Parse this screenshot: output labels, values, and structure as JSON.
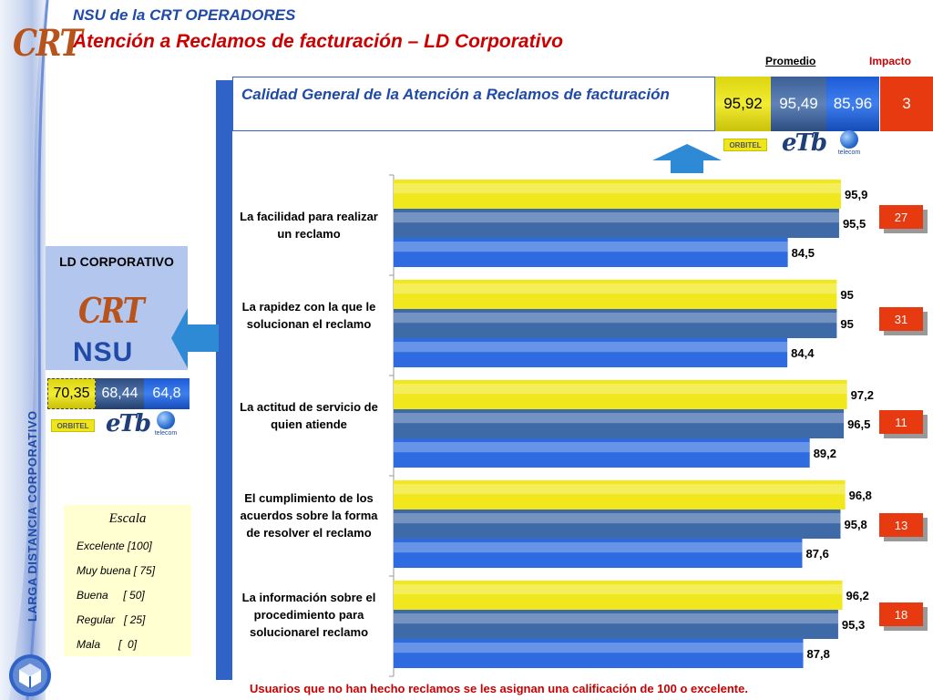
{
  "header": {
    "logo": "CRT",
    "line1": "NSU de la CRT  OPERADORES",
    "line2": "Atención a Reclamos de facturación – LD Corporativo"
  },
  "side_label": "LARGA DISTANCIA CORPORATIVO",
  "columns": {
    "promedio": "Promedio",
    "impacto": "Impacto"
  },
  "summary": {
    "title": "Calidad General de la Atención a Reclamos de facturación",
    "orbitel": "95,92",
    "etb": "95,49",
    "telecom": "85,96",
    "impact": "3"
  },
  "brands": {
    "orbitel": "ORBITEL",
    "etb": "eTb",
    "telecom": "telecom"
  },
  "ld_panel": {
    "title": "LD CORPORATIVO",
    "crt": "CRT",
    "nsu": "NSU",
    "orbitel": "70,35",
    "etb": "68,44",
    "telecom": "64,8"
  },
  "scale": {
    "title": "Escala",
    "items": [
      "Excelente [100]",
      "Muy buena [ 75]",
      "Buena     [ 50]",
      "Regular   [ 25]",
      "Mala      [  0]"
    ]
  },
  "footnote": "Usuarios que no han hecho reclamos se les asignan una calificación de 100 o excelente.",
  "colors": {
    "orbitel": "#f0e81c",
    "etb": "#3f6aa8",
    "telecom": "#2f6be0",
    "impact": "#e83a10",
    "title_blue": "#1f4aa8",
    "title_red": "#cc0000"
  },
  "chart_data": {
    "type": "bar",
    "orientation": "horizontal",
    "categories": [
      "La facilidad para realizar un reclamo",
      "La rapidez con la que le solucionan el reclamo",
      "La actitud de servicio de quien atiende",
      "El cumplimiento de los acuerdos sobre la forma de resolver el reclamo",
      "La información sobre el procedimiento para solucionarel reclamo"
    ],
    "series": [
      {
        "values": [
          95.9,
          95,
          97.2,
          96.8,
          96.2
        ],
        "labels": [
          "95,9",
          "95",
          "97,2",
          "96,8",
          "96,2"
        ],
        "color": "#f0e81c"
      },
      {
        "values": [
          95.5,
          95,
          96.5,
          95.8,
          95.3
        ],
        "labels": [
          "95,5",
          "95",
          "96,5",
          "95,8",
          "95,3"
        ],
        "color": "#3f6aa8"
      },
      {
        "values": [
          84.5,
          84.4,
          89.2,
          87.6,
          87.8
        ],
        "labels": [
          "84,5",
          "84,4",
          "89,2",
          "87,6",
          "87,8"
        ],
        "color": "#2f6be0"
      }
    ],
    "impact": [
      "27",
      "31",
      "11",
      "13",
      "18"
    ],
    "xlim": [
      0,
      100
    ]
  }
}
